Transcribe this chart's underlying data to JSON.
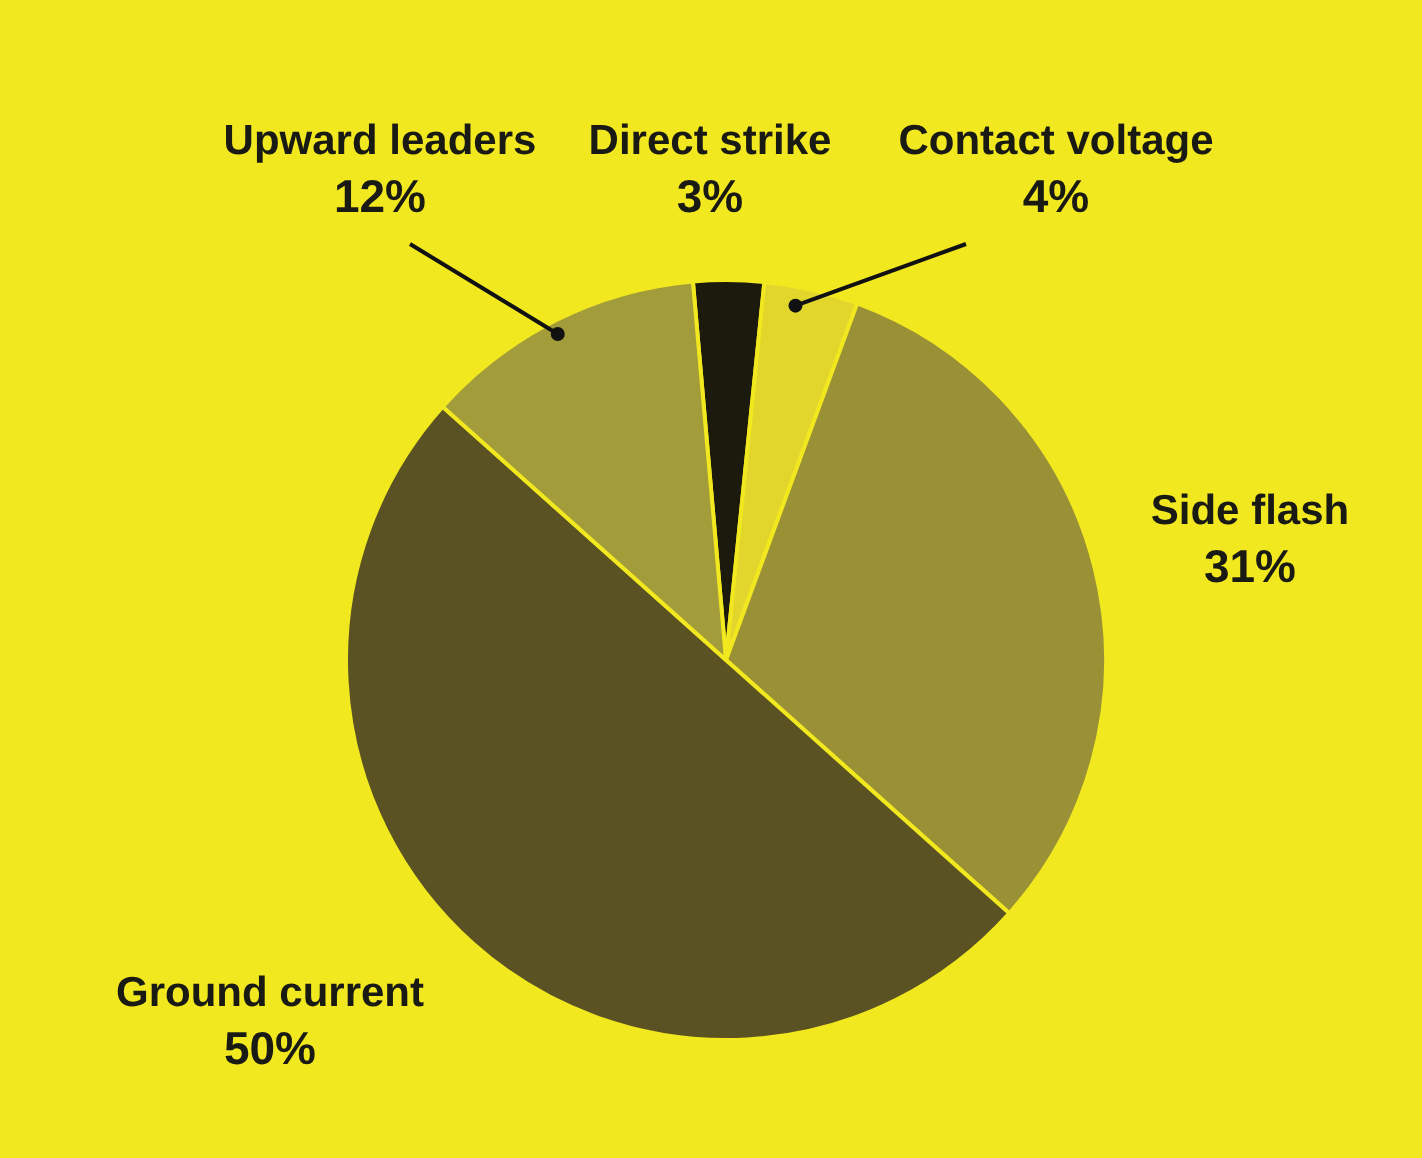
{
  "chart_data": {
    "type": "pie",
    "categories": [
      "Direct strike",
      "Contact voltage",
      "Side flash",
      "Ground current",
      "Upward leaders"
    ],
    "values": [
      3,
      4,
      31,
      50,
      12
    ],
    "colors": [
      "#1c1a0c",
      "#e2d62c",
      "#9a9035",
      "#5a5222",
      "#a39c3a"
    ],
    "value_labels": [
      "3%",
      "4%",
      "31%",
      "50%",
      "12%"
    ]
  }
}
